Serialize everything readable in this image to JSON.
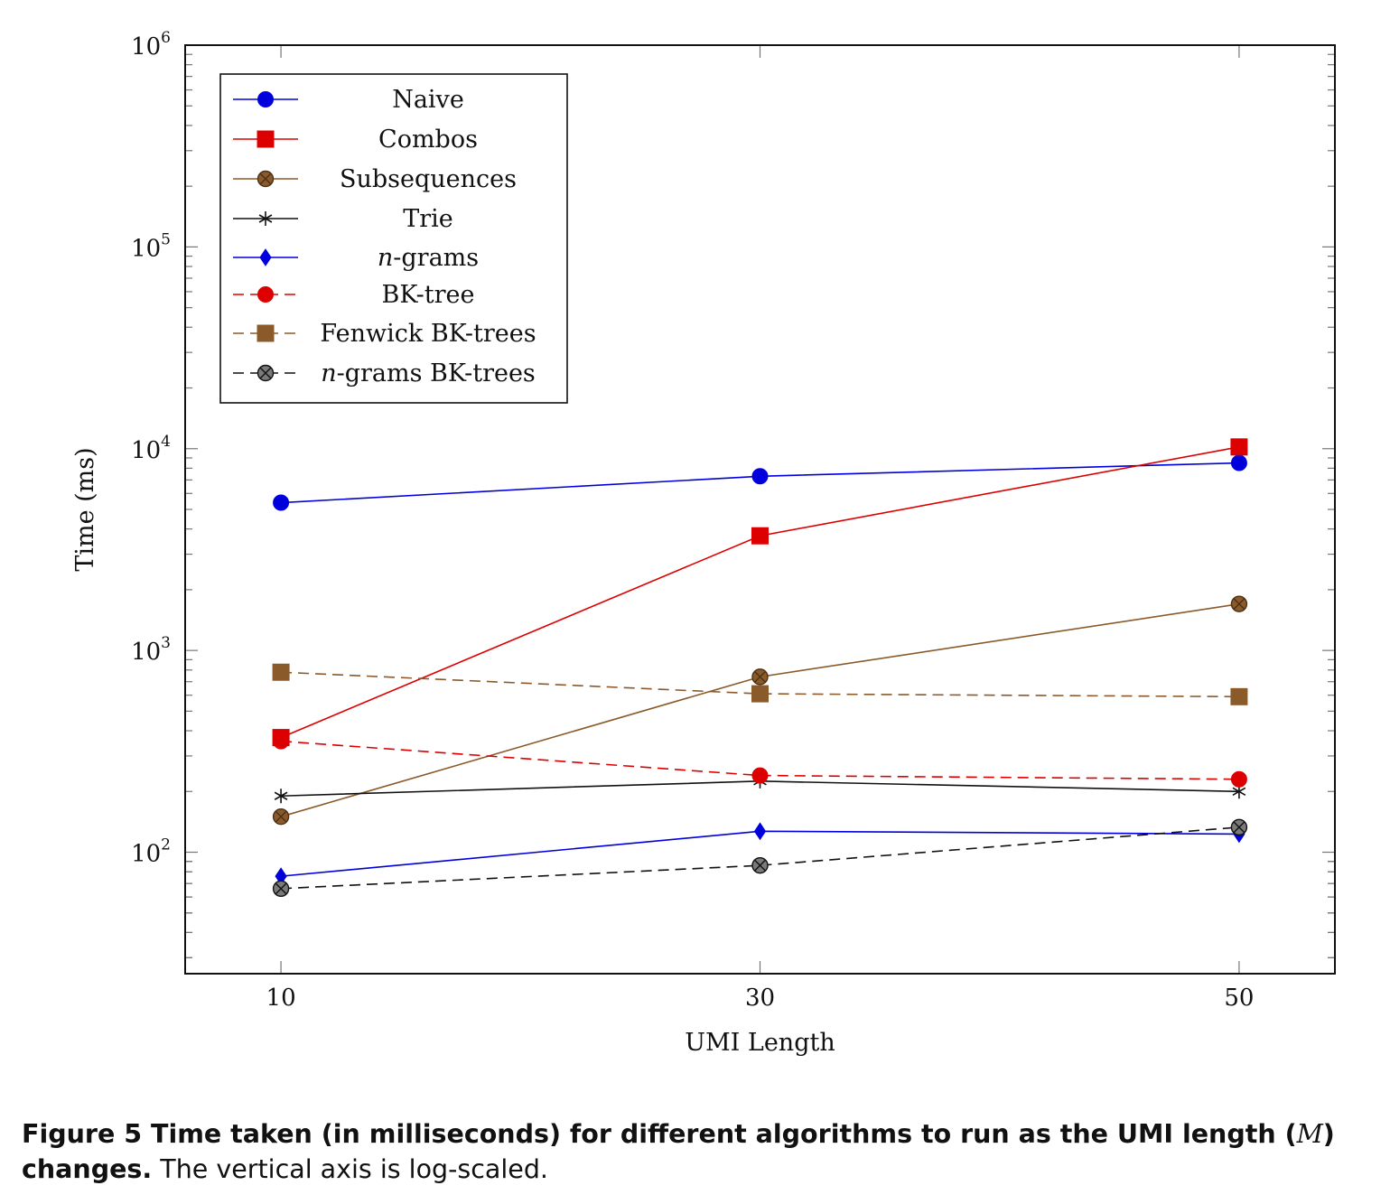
{
  "chart_data": {
    "type": "line",
    "xlabel": "UMI Length",
    "ylabel": "Time (ms)",
    "x": [
      10,
      30,
      50
    ],
    "xlim": [
      6,
      54
    ],
    "ylim": [
      25,
      1000000
    ],
    "yscale": "log",
    "yticks": [
      {
        "base": "10",
        "exp": "2",
        "value": 100
      },
      {
        "base": "10",
        "exp": "3",
        "value": 1000
      },
      {
        "base": "10",
        "exp": "4",
        "value": 10000
      },
      {
        "base": "10",
        "exp": "5",
        "value": 100000
      },
      {
        "base": "10",
        "exp": "6",
        "value": 1000000
      }
    ],
    "xticks": [
      "10",
      "30",
      "50"
    ],
    "legend_position": "top-left",
    "series": [
      {
        "name": "Naive",
        "name_prefix": "",
        "values": [
          5400,
          7300,
          8500
        ],
        "color": "#0000dd",
        "dash": "solid",
        "marker": "circle"
      },
      {
        "name": "Combos",
        "name_prefix": "",
        "values": [
          370,
          3700,
          10200
        ],
        "color": "#dd0000",
        "dash": "solid",
        "marker": "square"
      },
      {
        "name": "Subsequences",
        "name_prefix": "",
        "values": [
          150,
          740,
          1700
        ],
        "color": "#8b5a2b",
        "dash": "solid",
        "marker": "otimes"
      },
      {
        "name": "Trie",
        "name_prefix": "",
        "values": [
          190,
          225,
          200
        ],
        "color": "#111111",
        "dash": "solid",
        "marker": "star"
      },
      {
        "name": "-grams",
        "name_prefix": "n",
        "values": [
          76,
          127,
          123
        ],
        "color": "#0000dd",
        "dash": "solid",
        "marker": "diamond"
      },
      {
        "name": "BK-tree",
        "name_prefix": "",
        "values": [
          355,
          240,
          230
        ],
        "color": "#dd0000",
        "dash": "dashed",
        "marker": "circle"
      },
      {
        "name": "Fenwick BK-trees",
        "name_prefix": "",
        "values": [
          780,
          610,
          590
        ],
        "color": "#8b5a2b",
        "dash": "dashed",
        "marker": "square"
      },
      {
        "name": "-grams BK-trees",
        "name_prefix": "n",
        "values": [
          66,
          86,
          133
        ],
        "color": "#111111",
        "dash": "dashed",
        "marker": "otimes"
      }
    ]
  },
  "caption": {
    "prefix": "Figure 5",
    "bold_text": " Time taken (in milliseconds) for different algorithms to run as the UMI length (",
    "math": "M",
    "bold_close": ")",
    "bold_end": " changes.",
    "text": " The vertical axis is log-scaled."
  }
}
